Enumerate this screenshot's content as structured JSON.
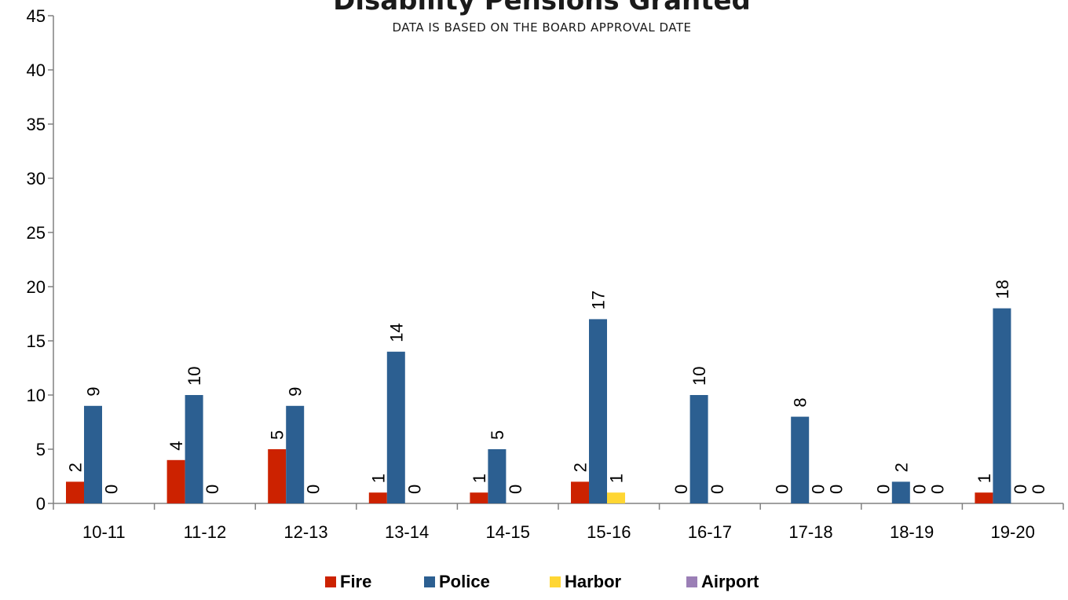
{
  "chart_data": {
    "type": "bar",
    "title": "Disability Pensions Granted",
    "subtitle": "DATA IS BASED ON THE BOARD APPROVAL DATE",
    "xlabel": "",
    "ylabel": "",
    "ylim": [
      0,
      45
    ],
    "y_ticks": [
      0,
      5,
      10,
      15,
      20,
      25,
      30,
      35,
      40,
      45
    ],
    "grid": false,
    "legend_position": "bottom",
    "categories": [
      "10-11",
      "11-12",
      "12-13",
      "13-14",
      "14-15",
      "15-16",
      "16-17",
      "17-18",
      "18-19",
      "19-20"
    ],
    "series": [
      {
        "name": "Fire",
        "color": "#cc2200",
        "values": [
          2,
          4,
          5,
          1,
          1,
          2,
          0,
          0,
          0,
          1
        ],
        "labeled": [
          true,
          true,
          true,
          true,
          true,
          true,
          true,
          true,
          true,
          true
        ]
      },
      {
        "name": "Police",
        "color": "#2c5f91",
        "values": [
          9,
          10,
          9,
          14,
          5,
          17,
          10,
          8,
          2,
          18
        ],
        "labeled": [
          true,
          true,
          true,
          true,
          true,
          true,
          true,
          true,
          true,
          true
        ]
      },
      {
        "name": "Harbor",
        "color": "#ffd633",
        "values": [
          0,
          0,
          0,
          0,
          0,
          1,
          0,
          0,
          0,
          0
        ],
        "labeled": [
          true,
          true,
          true,
          true,
          true,
          true,
          true,
          true,
          true,
          true
        ]
      },
      {
        "name": "Airport",
        "color": "#9b7fb6",
        "values": [
          0,
          0,
          0,
          0,
          0,
          0,
          0,
          0,
          0,
          0
        ],
        "labeled": [
          false,
          false,
          false,
          false,
          false,
          false,
          false,
          true,
          true,
          true
        ]
      }
    ]
  }
}
